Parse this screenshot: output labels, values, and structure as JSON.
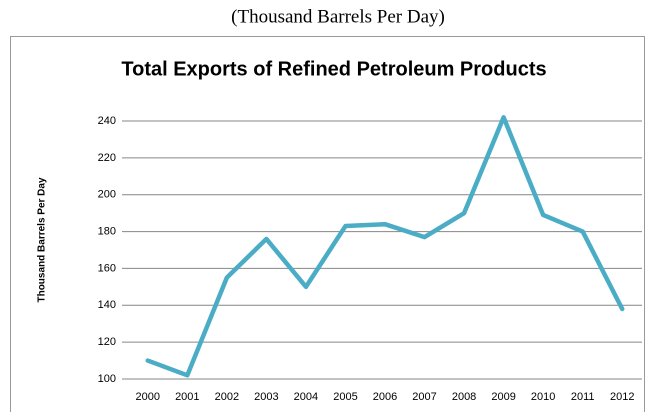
{
  "chart_data": {
    "type": "line",
    "subtitle": "(Thousand Barrels Per Day)",
    "title": "Total Exports of Refined Petroleum Products",
    "y_label": "Thousand Barrels Per Day",
    "categories": [
      "2000",
      "2001",
      "2002",
      "2003",
      "2004",
      "2005",
      "2006",
      "2007",
      "2008",
      "2009",
      "2010",
      "2011",
      "2012"
    ],
    "values": [
      110,
      102,
      155,
      176,
      150,
      183,
      184,
      177,
      190,
      242,
      189,
      180,
      138
    ],
    "color": "#4bacc6",
    "ylim": [
      100,
      250
    ],
    "yticks": [
      100,
      120,
      140,
      160,
      180,
      200,
      220,
      240
    ],
    "grid": true
  }
}
